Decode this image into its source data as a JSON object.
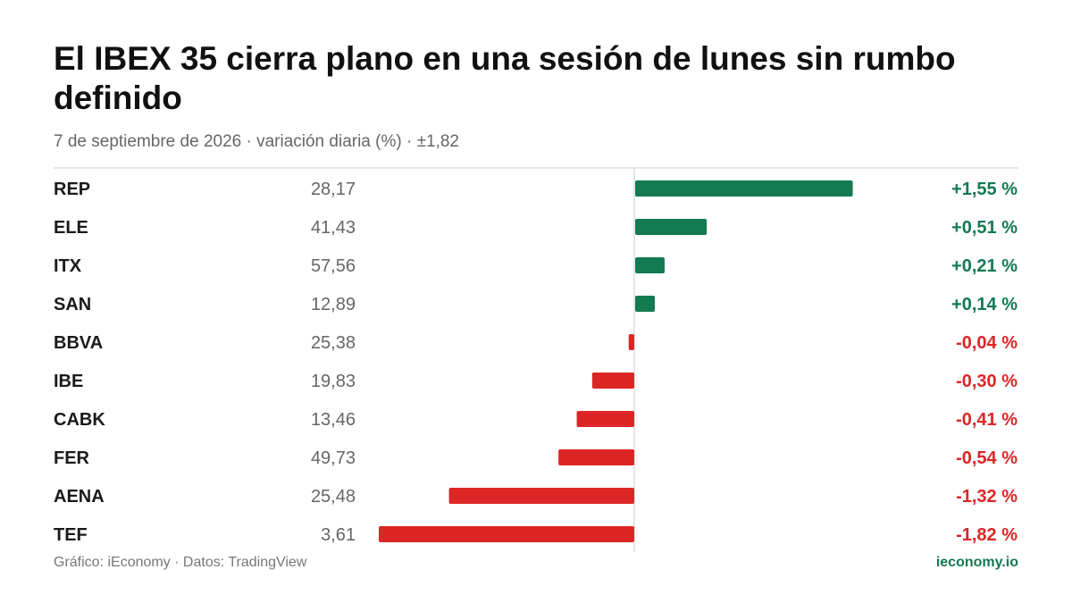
{
  "header": {
    "title": "El IBEX 35 cierra plano en una sesión de lunes sin rumbo definido",
    "subtitle": "7 de septiembre de 2026 · variación diaria (%) · ±1,82"
  },
  "footer": {
    "source": "Gráfico: iEconomy · Datos: TradingView",
    "brand": "ieconomy.io"
  },
  "colors": {
    "positive": "#137a52",
    "negative": "#dc2626",
    "ticker": "#1a1a1a",
    "price": "#666666",
    "rule": "#dddddd"
  },
  "chart_data": {
    "type": "bar",
    "orientation": "horizontal",
    "title": "El IBEX 35 cierra plano en una sesión de lunes sin rumbo definido",
    "xlim": [
      -1.82,
      1.82
    ],
    "categories": [
      "REP",
      "ELE",
      "ITX",
      "SAN",
      "BBVA",
      "IBE",
      "CABK",
      "FER",
      "AENA",
      "TEF"
    ],
    "prices": [
      "28,17",
      "41,43",
      "57,56",
      "12,89",
      "25,38",
      "19,83",
      "13,46",
      "49,73",
      "25,48",
      "3,61"
    ],
    "values": [
      1.55,
      0.51,
      0.21,
      0.14,
      -0.04,
      -0.3,
      -0.41,
      -0.54,
      -1.32,
      -1.82
    ],
    "value_labels": [
      "+1,55 %",
      "+0,51 %",
      "+0,21 %",
      "+0,14 %",
      "-0,04 %",
      "-0,30 %",
      "-0,41 %",
      "-0,54 %",
      "-1,32 %",
      "-1,82 %"
    ]
  }
}
